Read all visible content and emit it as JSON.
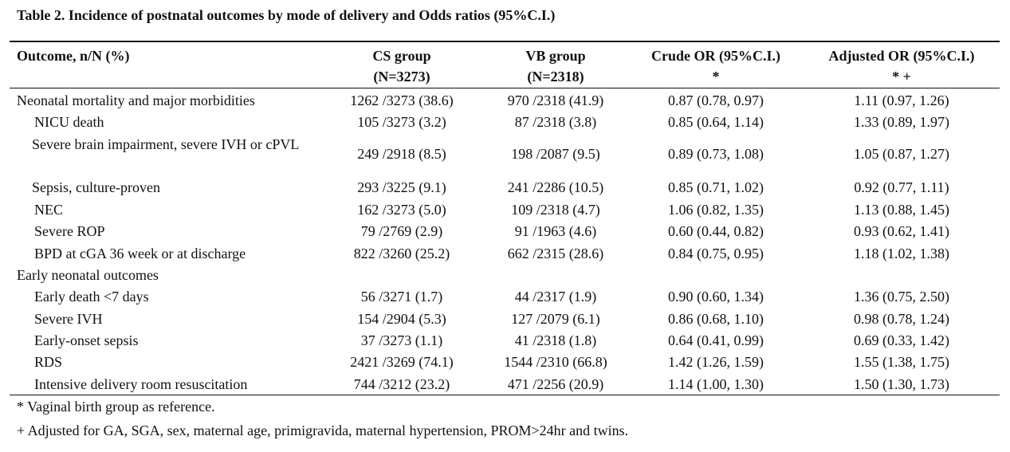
{
  "title": "Table 2. Incidence of postnatal outcomes by mode of delivery and Odds ratios (95%C.I.)",
  "headers": {
    "outcome": "Outcome, n/N (%)",
    "cs_line1": "CS group",
    "cs_line2": "(N=3273)",
    "vb_line1": "VB group",
    "vb_line2": "(N=2318)",
    "crude_line1": "Crude OR (95%C.I.)",
    "crude_line2": "*",
    "adj_line1": "Adjusted OR (95%C.I.)",
    "adj_line2": "* +"
  },
  "rows": [
    {
      "outcome": "Neonatal mortality and major morbidities",
      "cs": "1262 /3273 (38.6)",
      "vb": "970 /2318 (41.9)",
      "crude": "0.87 (0.78, 0.97)",
      "adjusted": "1.11 (0.97, 1.26)"
    },
    {
      "outcome": "NICU death",
      "cs": "105 /3273 (3.2)",
      "vb": "87 /2318 (3.8)",
      "crude": "0.85 (0.64, 1.14)",
      "adjusted": "1.33 (0.89, 1.97)"
    },
    {
      "outcome": "Severe brain impairment, severe IVH or cPVL",
      "cs": "249 /2918 (8.5)",
      "vb": "198 /2087 (9.5)",
      "crude": "0.89 (0.73, 1.08)",
      "adjusted": "1.05 (0.87, 1.27)"
    },
    {
      "outcome": "Sepsis, culture-proven",
      "cs": "293 /3225 (9.1)",
      "vb": "241 /2286 (10.5)",
      "crude": "0.85 (0.71, 1.02)",
      "adjusted": "0.92 (0.77, 1.11)"
    },
    {
      "outcome": "NEC",
      "cs": "162 /3273 (5.0)",
      "vb": "109 /2318 (4.7)",
      "crude": "1.06 (0.82, 1.35)",
      "adjusted": "1.13 (0.88, 1.45)"
    },
    {
      "outcome": "Severe ROP",
      "cs": "79 /2769 (2.9)",
      "vb": "91 /1963 (4.6)",
      "crude": "0.60 (0.44, 0.82)",
      "adjusted": "0.93 (0.62, 1.41)"
    },
    {
      "outcome": "BPD at cGA 36 week or at discharge",
      "cs": "822 /3260 (25.2)",
      "vb": "662 /2315 (28.6)",
      "crude": "0.84 (0.75, 0.95)",
      "adjusted": "1.18 (1.02, 1.38)"
    },
    {
      "outcome": "Early neonatal outcomes",
      "cs": "",
      "vb": "",
      "crude": "",
      "adjusted": ""
    },
    {
      "outcome": "Early death <7 days",
      "cs": "56 /3271 (1.7)",
      "vb": "44 /2317 (1.9)",
      "crude": "0.90 (0.60, 1.34)",
      "adjusted": "1.36 (0.75, 2.50)"
    },
    {
      "outcome": "Severe IVH",
      "cs": "154 /2904 (5.3)",
      "vb": "127 /2079 (6.1)",
      "crude": "0.86 (0.68, 1.10)",
      "adjusted": "0.98 (0.78, 1.24)"
    },
    {
      "outcome": "Early-onset sepsis",
      "cs": "37 /3273 (1.1)",
      "vb": "41 /2318 (1.8)",
      "crude": "0.64 (0.41, 0.99)",
      "adjusted": "0.69 (0.33, 1.42)"
    },
    {
      "outcome": "RDS",
      "cs": "2421 /3269 (74.1)",
      "vb": "1544 /2310 (66.8)",
      "crude": "1.42 (1.26, 1.59)",
      "adjusted": "1.55 (1.38, 1.75)"
    },
    {
      "outcome": "Intensive delivery room resuscitation",
      "cs": "744 /3212 (23.2)",
      "vb": "471 /2256 (20.9)",
      "crude": "1.14 (1.00, 1.30)",
      "adjusted": "1.50 (1.30, 1.73)"
    }
  ],
  "footnotes": [
    "* Vaginal birth group as reference.",
    "+ Adjusted for GA, SGA, sex, maternal age, primigravida, maternal hypertension, PROM>24hr and twins."
  ]
}
